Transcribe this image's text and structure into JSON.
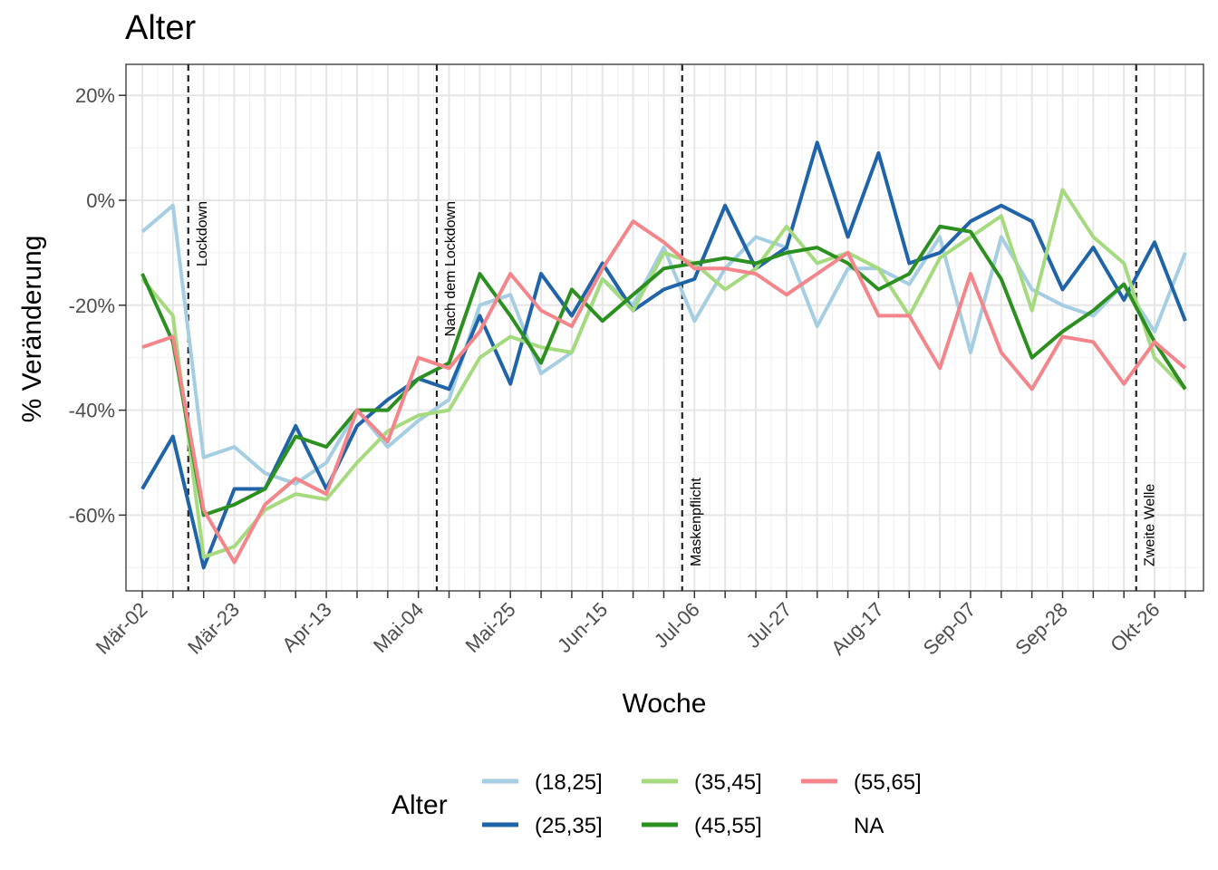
{
  "chart_data": {
    "type": "line",
    "title": "Alter",
    "xlabel": "Woche",
    "ylabel": "% Veränderung",
    "x_tick_labels": [
      "Mär-02",
      "Mär-23",
      "Apr-13",
      "Mai-04",
      "Mai-25",
      "Jun-15",
      "Jul-06",
      "Jul-27",
      "Aug-17",
      "Sep-07",
      "Sep-28",
      "Okt-26"
    ],
    "y_tick_labels": [
      "20%",
      "0%",
      "-20%",
      "-40%",
      "-60%"
    ],
    "y_tick_values": [
      20,
      0,
      -20,
      -40,
      -60
    ],
    "ylim": [
      -74,
      26
    ],
    "weeks": [
      "Mär-02",
      "Mär-09",
      "Mär-16",
      "Mär-23",
      "Mär-30",
      "Apr-06",
      "Apr-13",
      "Apr-20",
      "Apr-27",
      "Mai-04",
      "Mai-11",
      "Mai-18",
      "Mai-25",
      "Jun-01",
      "Jun-08",
      "Jun-15",
      "Jun-22",
      "Jun-29",
      "Jul-06",
      "Jul-13",
      "Jul-20",
      "Jul-27",
      "Aug-03",
      "Aug-10",
      "Aug-17",
      "Aug-24",
      "Aug-31",
      "Sep-07",
      "Sep-14",
      "Sep-21",
      "Sep-28",
      "Okt-05",
      "Okt-12",
      "Okt-19",
      "Okt-26"
    ],
    "grid": true,
    "legend_position": "bottom",
    "legend_title": "Alter",
    "vlines": [
      {
        "week_index": 1.5,
        "label": "Lockdown"
      },
      {
        "week_index": 9.6,
        "label": "Nach dem Lockdown"
      },
      {
        "week_index": 17.6,
        "label": "Maskenpflicht"
      },
      {
        "week_index": 32.4,
        "label": "Zweite Welle"
      }
    ],
    "series": [
      {
        "name": "(18,25]",
        "color": "#A6CEE3",
        "values": [
          -6,
          -1,
          -49,
          -47,
          -52,
          -54,
          -50,
          -40,
          -47,
          -42,
          -38,
          -20,
          -18,
          -33,
          -29,
          -15,
          -20,
          -9,
          -23,
          -13,
          -7,
          -9,
          -24,
          -13,
          -13,
          -16,
          -7,
          -29,
          -7,
          -17,
          -20,
          -22,
          -16,
          -25,
          -10
        ]
      },
      {
        "name": "(25,35]",
        "color": "#1F63A8",
        "values": [
          -55,
          -45,
          -70,
          -55,
          -55,
          -43,
          -55,
          -43,
          -38,
          -34,
          -36,
          -22,
          -35,
          -14,
          -22,
          -12,
          -21,
          -17,
          -15,
          -1,
          -13,
          -9,
          11,
          -7,
          9,
          -12,
          -10,
          -4,
          -1,
          -4,
          -17,
          -9,
          -19,
          -8,
          -23
        ]
      },
      {
        "name": "(35,45]",
        "color": "#A6DA7F",
        "values": [
          -15,
          -22,
          -68,
          -66,
          -59,
          -56,
          -57,
          -50,
          -44,
          -41,
          -40,
          -30,
          -26,
          -28,
          -29,
          -15,
          -21,
          -10,
          -12,
          -17,
          -13,
          -5,
          -12,
          -10,
          -13,
          -22,
          -11,
          -7,
          -3,
          -21,
          2,
          -7,
          -12,
          -30,
          -36
        ]
      },
      {
        "name": "(45,55]",
        "color": "#2C9021",
        "values": [
          -14,
          -27,
          -60,
          -58,
          -55,
          -45,
          -47,
          -40,
          -40,
          -34,
          -31,
          -14,
          -22,
          -31,
          -17,
          -23,
          -18,
          -13,
          -12,
          -11,
          -12,
          -10,
          -9,
          -12,
          -17,
          -14,
          -5,
          -6,
          -15,
          -30,
          -25,
          -21,
          -16,
          -27,
          -36
        ]
      },
      {
        "name": "(55,65]",
        "color": "#F4868B",
        "values": [
          -28,
          -26,
          -59,
          -69,
          -58,
          -53,
          -56,
          -40,
          -46,
          -30,
          -32,
          -25,
          -14,
          -21,
          -24,
          -13,
          -4,
          -8,
          -13,
          -13,
          -14,
          -18,
          -14,
          -10,
          -22,
          -22,
          -32,
          -14,
          -29,
          -36,
          -26,
          -27,
          -35,
          -27,
          -32
        ]
      },
      {
        "name": "NA",
        "color": "#FFFFFF",
        "values": []
      }
    ]
  }
}
